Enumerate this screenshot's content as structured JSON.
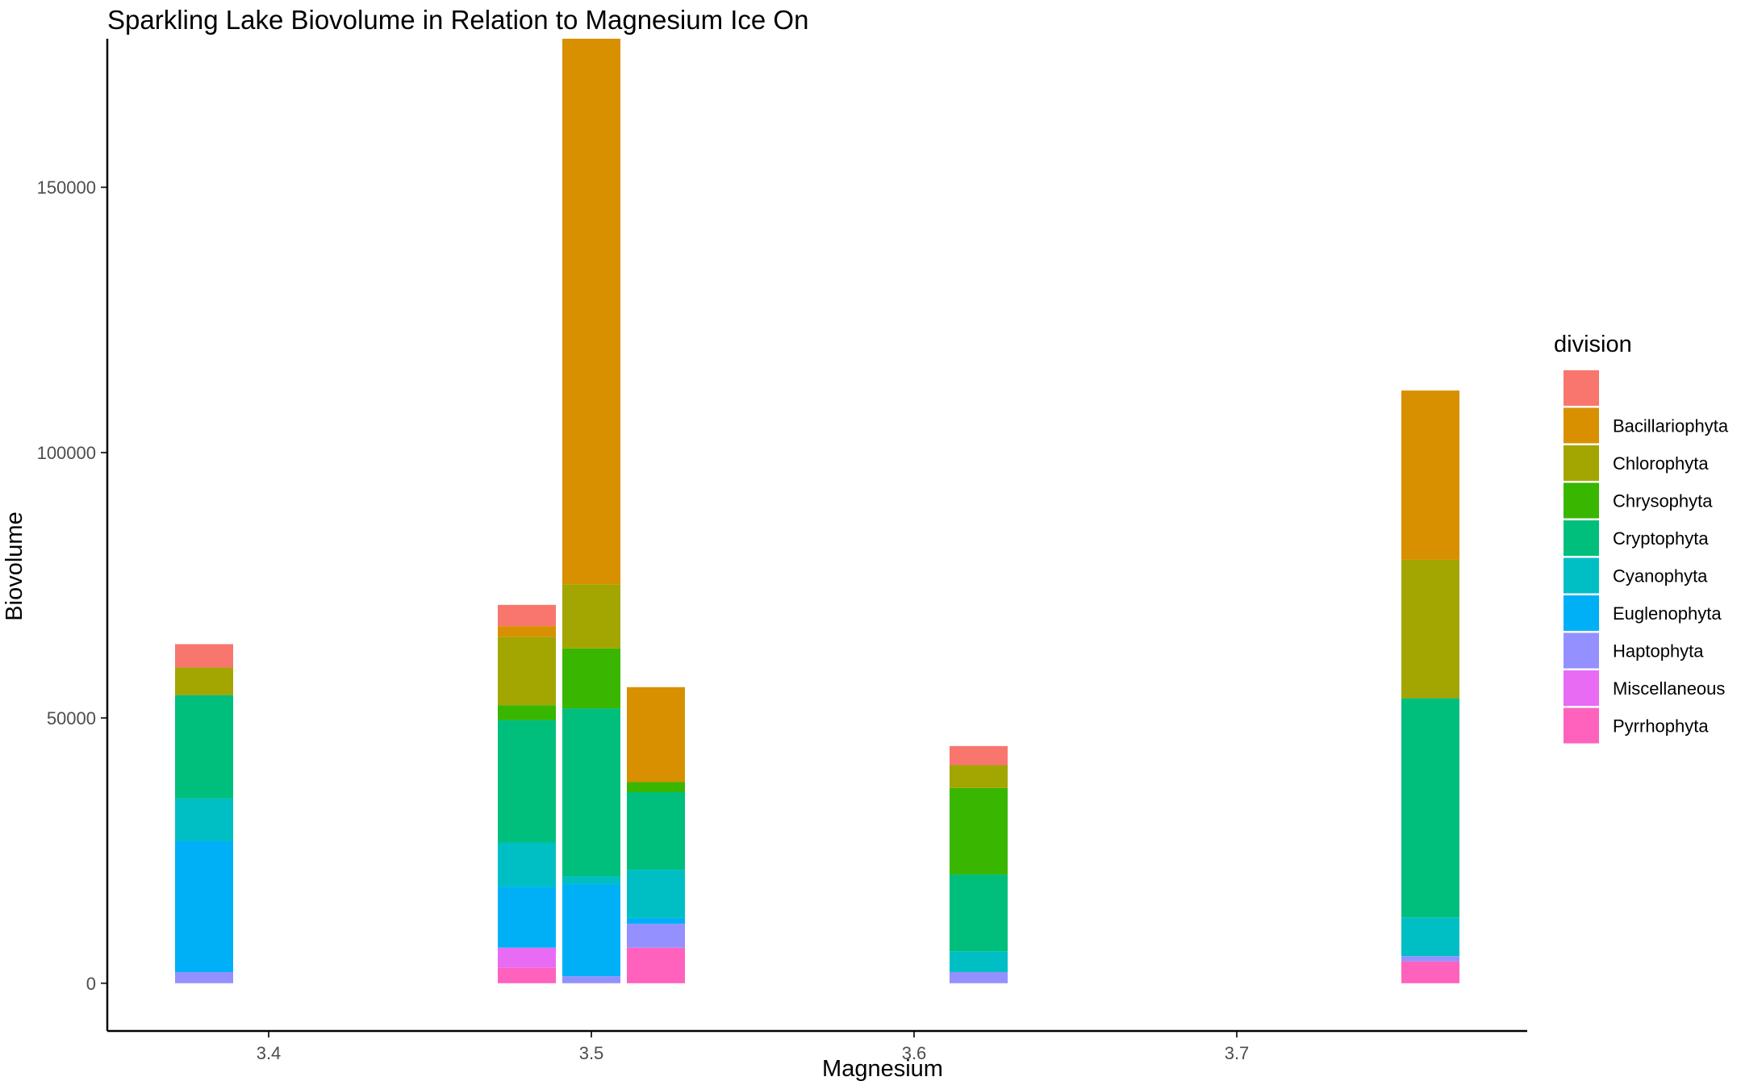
{
  "chart_data": {
    "type": "bar",
    "stacked": true,
    "title": "Sparkling Lake Biovolume in Relation to Magnesium Ice On",
    "xlabel": "Magnesium",
    "ylabel": "Biovolume",
    "xlim": [
      3.35,
      3.79
    ],
    "ylim": [
      -9000,
      178000
    ],
    "x_ticks": [
      3.4,
      3.5,
      3.6,
      3.7
    ],
    "y_ticks": [
      0,
      50000,
      100000,
      150000
    ],
    "x_tick_labels": [
      "3.4",
      "3.5",
      "3.6",
      "3.7"
    ],
    "y_tick_labels": [
      "0",
      "50000",
      "100000",
      "150000"
    ],
    "bar_width": 0.018,
    "grid": false,
    "legend": {
      "title": "division",
      "position": "right",
      "entries": [
        {
          "name": "",
          "color": "#F8766D"
        },
        {
          "name": "Bacillariophyta",
          "color": "#D89000"
        },
        {
          "name": "Chlorophyta",
          "color": "#A3A500"
        },
        {
          "name": "Chrysophyta",
          "color": "#39B600"
        },
        {
          "name": "Cryptophyta",
          "color": "#00BF7D"
        },
        {
          "name": "Cyanophyta",
          "color": "#00BFC4"
        },
        {
          "name": "Euglenophyta",
          "color": "#00B0F6"
        },
        {
          "name": "Haptophyta",
          "color": "#9590FF"
        },
        {
          "name": "Miscellaneous",
          "color": "#E76BF3"
        },
        {
          "name": "Pyrrhophyta",
          "color": "#FF62BC"
        }
      ]
    },
    "stack_order_bottom_to_top": [
      "Pyrrhophyta",
      "Miscellaneous",
      "Haptophyta",
      "Euglenophyta",
      "Cyanophyta",
      "Cryptophyta",
      "Chrysophyta",
      "Chlorophyta",
      "Bacillariophyta",
      ""
    ],
    "bars": [
      {
        "x": 3.38,
        "segments": [
          {
            "division": "Haptophyta",
            "value": 2100
          },
          {
            "division": "Euglenophyta",
            "value": 24700
          },
          {
            "division": "Cyanophyta",
            "value": 8000
          },
          {
            "division": "Cryptophyta",
            "value": 19500
          },
          {
            "division": "Chlorophyta",
            "value": 5200
          },
          {
            "division": "",
            "value": 4400
          }
        ]
      },
      {
        "x": 3.48,
        "segments": [
          {
            "division": "Pyrrhophyta",
            "value": 2900
          },
          {
            "division": "Miscellaneous",
            "value": 3800
          },
          {
            "division": "Euglenophyta",
            "value": 11500
          },
          {
            "division": "Cyanophyta",
            "value": 8300
          },
          {
            "division": "Cryptophyta",
            "value": 23100
          },
          {
            "division": "Chrysophyta",
            "value": 2800
          },
          {
            "division": "Chlorophyta",
            "value": 12900
          },
          {
            "division": "Bacillariophyta",
            "value": 2000
          },
          {
            "division": "",
            "value": 4000
          }
        ]
      },
      {
        "x": 3.5,
        "segments": [
          {
            "division": "Haptophyta",
            "value": 1300
          },
          {
            "division": "Euglenophyta",
            "value": 17300
          },
          {
            "division": "Cyanophyta",
            "value": 1500
          },
          {
            "division": "Cryptophyta",
            "value": 31700
          },
          {
            "division": "Chrysophyta",
            "value": 11300
          },
          {
            "division": "Chlorophyta",
            "value": 12100
          },
          {
            "division": "Bacillariophyta",
            "value": 102800
          }
        ]
      },
      {
        "x": 3.52,
        "segments": [
          {
            "division": "Pyrrhophyta",
            "value": 6700
          },
          {
            "division": "Haptophyta",
            "value": 4500
          },
          {
            "division": "Euglenophyta",
            "value": 1100
          },
          {
            "division": "Cyanophyta",
            "value": 9100
          },
          {
            "division": "Cryptophyta",
            "value": 14600
          },
          {
            "division": "Chrysophyta",
            "value": 1900
          },
          {
            "division": "Bacillariophyta",
            "value": 17900
          }
        ]
      },
      {
        "x": 3.62,
        "segments": [
          {
            "division": "Haptophyta",
            "value": 2100
          },
          {
            "division": "Cyanophyta",
            "value": 3900
          },
          {
            "division": "Cryptophyta",
            "value": 14500
          },
          {
            "division": "Chrysophyta",
            "value": 16300
          },
          {
            "division": "Chlorophyta",
            "value": 4300
          },
          {
            "division": "",
            "value": 3600
          }
        ]
      },
      {
        "x": 3.76,
        "segments": [
          {
            "division": "Pyrrhophyta",
            "value": 4100
          },
          {
            "division": "Haptophyta",
            "value": 1000
          },
          {
            "division": "Cyanophyta",
            "value": 7300
          },
          {
            "division": "Cryptophyta",
            "value": 41300
          },
          {
            "division": "Chlorophyta",
            "value": 26100
          },
          {
            "division": "Bacillariophyta",
            "value": 31900
          }
        ]
      }
    ]
  }
}
